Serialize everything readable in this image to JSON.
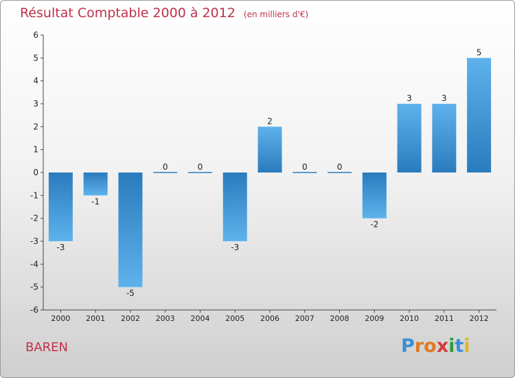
{
  "header": {
    "title": "Résultat Comptable 2000 à 2012",
    "unit": "(en milliers d'€)"
  },
  "footer": {
    "commune": "BAREN",
    "logo_letters": [
      "P",
      "r",
      "o",
      "x",
      "i",
      "t",
      "i"
    ],
    "logo_colors": [
      "#3a8fd6",
      "#e07a1f",
      "#e07a1f",
      "#d63a3a",
      "#2f9e3a",
      "#3a8fd6",
      "#e0b81f"
    ]
  },
  "colors": {
    "title": "#c0304a",
    "bar_dark": "#2a7bbd",
    "bar_light": "#5eb2ec"
  },
  "chart_data": {
    "type": "bar",
    "title": "Résultat Comptable 2000 à 2012",
    "ylabel": "(en milliers d'€)",
    "xlabel": "",
    "categories": [
      "2000",
      "2001",
      "2002",
      "2003",
      "2004",
      "2005",
      "2006",
      "2007",
      "2008",
      "2009",
      "2010",
      "2011",
      "2012"
    ],
    "values": [
      -3,
      -1,
      -5,
      0,
      0,
      -3,
      2,
      0,
      0,
      -2,
      3,
      3,
      5
    ],
    "ylim": [
      -6,
      6
    ],
    "yticks": [
      -6,
      -5,
      -4,
      -3,
      -2,
      -1,
      0,
      1,
      2,
      3,
      4,
      5,
      6
    ],
    "grid": false,
    "legend": "none"
  }
}
